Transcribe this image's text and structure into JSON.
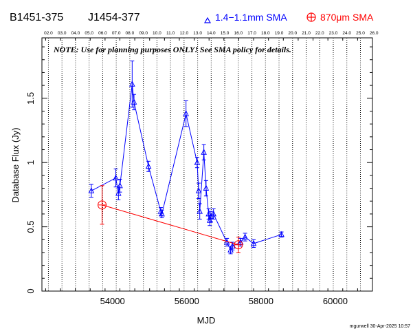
{
  "header": {
    "source_name": "B1451-375",
    "alt_name": "J1454-377",
    "legend_blue_label": "1.4−1.1mm SMA",
    "legend_red_label": "870μm SMA"
  },
  "note": "NOTE: Use for planning purposes ONLY!  See SMA policy for details.",
  "footer": {
    "credit": "mgurwell 30-Apr-2025 10:57"
  },
  "chart_data": {
    "type": "scatter",
    "title": "",
    "xlabel": "MJD",
    "ylabel": "Database Flux (Jy)",
    "xlim": [
      52100,
      61000
    ],
    "ylim": [
      0,
      1.97
    ],
    "x_ticks": [
      54000,
      56000,
      58000,
      60000
    ],
    "x_tick_labels": [
      "54000",
      "56000",
      "58000",
      "60000"
    ],
    "y_ticks": [
      0,
      0.5,
      1,
      1.5
    ],
    "y_tick_labels": [
      "0",
      "0.5",
      "1",
      "1.5"
    ],
    "top_axis_ticks": [
      {
        "x": 52275,
        "label": "02.0"
      },
      {
        "x": 52640,
        "label": "03.0"
      },
      {
        "x": 53005,
        "label": "04.0"
      },
      {
        "x": 53371,
        "label": "05.0"
      },
      {
        "x": 53736,
        "label": "06.0"
      },
      {
        "x": 54101,
        "label": "07.0"
      },
      {
        "x": 54466,
        "label": "08.0"
      },
      {
        "x": 54832,
        "label": "09.0"
      },
      {
        "x": 55197,
        "label": "10.0"
      },
      {
        "x": 55562,
        "label": "11.0"
      },
      {
        "x": 55927,
        "label": "12.0"
      },
      {
        "x": 56293,
        "label": "13.0"
      },
      {
        "x": 56658,
        "label": "14.0"
      },
      {
        "x": 57023,
        "label": "15.0"
      },
      {
        "x": 57388,
        "label": "16.0"
      },
      {
        "x": 57754,
        "label": "17.0"
      },
      {
        "x": 58119,
        "label": "18.0"
      },
      {
        "x": 58484,
        "label": "19.0"
      },
      {
        "x": 58849,
        "label": "20.0"
      },
      {
        "x": 59215,
        "label": "21.0"
      },
      {
        "x": 59580,
        "label": "22.0"
      },
      {
        "x": 59945,
        "label": "23.0"
      },
      {
        "x": 60310,
        "label": "24.0"
      },
      {
        "x": 60676,
        "label": "25.0"
      },
      {
        "x": 61041,
        "label": "26.0"
      }
    ],
    "grid": "vertical dotted lines at each year",
    "series": [
      {
        "name": "1.4−1.1mm SMA",
        "color": "#0000ff",
        "marker": "triangle",
        "connected": true,
        "points": [
          {
            "x": 53430,
            "y": 0.78,
            "err": 0.05
          },
          {
            "x": 54090,
            "y": 0.88,
            "err": 0.07
          },
          {
            "x": 54160,
            "y": 0.76,
            "err": 0.05
          },
          {
            "x": 54200,
            "y": 0.82,
            "err": 0.05
          },
          {
            "x": 54530,
            "y": 1.61,
            "err": 0.18
          },
          {
            "x": 54580,
            "y": 1.47,
            "err": 0.06
          },
          {
            "x": 54970,
            "y": 0.97,
            "err": 0.04
          },
          {
            "x": 55300,
            "y": 0.62,
            "err": 0.03
          },
          {
            "x": 55330,
            "y": 0.6,
            "err": 0.03
          },
          {
            "x": 55980,
            "y": 1.38,
            "err": 0.1
          },
          {
            "x": 56280,
            "y": 1.0,
            "err": 0.04
          },
          {
            "x": 56320,
            "y": 0.78,
            "err": 0.06
          },
          {
            "x": 56350,
            "y": 0.62,
            "err": 0.06
          },
          {
            "x": 56460,
            "y": 1.08,
            "err": 0.06
          },
          {
            "x": 56520,
            "y": 0.8,
            "err": 0.06
          },
          {
            "x": 56590,
            "y": 0.6,
            "err": 0.04
          },
          {
            "x": 56620,
            "y": 0.55,
            "err": 0.04
          },
          {
            "x": 56650,
            "y": 0.58,
            "err": 0.04
          },
          {
            "x": 56720,
            "y": 0.6,
            "err": 0.04
          },
          {
            "x": 57080,
            "y": 0.38,
            "err": 0.03
          },
          {
            "x": 57180,
            "y": 0.32,
            "err": 0.03
          },
          {
            "x": 57230,
            "y": 0.35,
            "err": 0.03
          },
          {
            "x": 57450,
            "y": 0.38,
            "err": 0.03
          },
          {
            "x": 57570,
            "y": 0.42,
            "err": 0.03
          },
          {
            "x": 57800,
            "y": 0.37,
            "err": 0.03
          },
          {
            "x": 58550,
            "y": 0.44,
            "err": 0.02
          }
        ]
      },
      {
        "name": "870μm SMA",
        "color": "#ff0000",
        "marker": "circle-plus",
        "connected": true,
        "points": [
          {
            "x": 53720,
            "y": 0.67,
            "err": 0.15
          },
          {
            "x": 57390,
            "y": 0.36,
            "err": 0.06
          }
        ]
      }
    ]
  }
}
